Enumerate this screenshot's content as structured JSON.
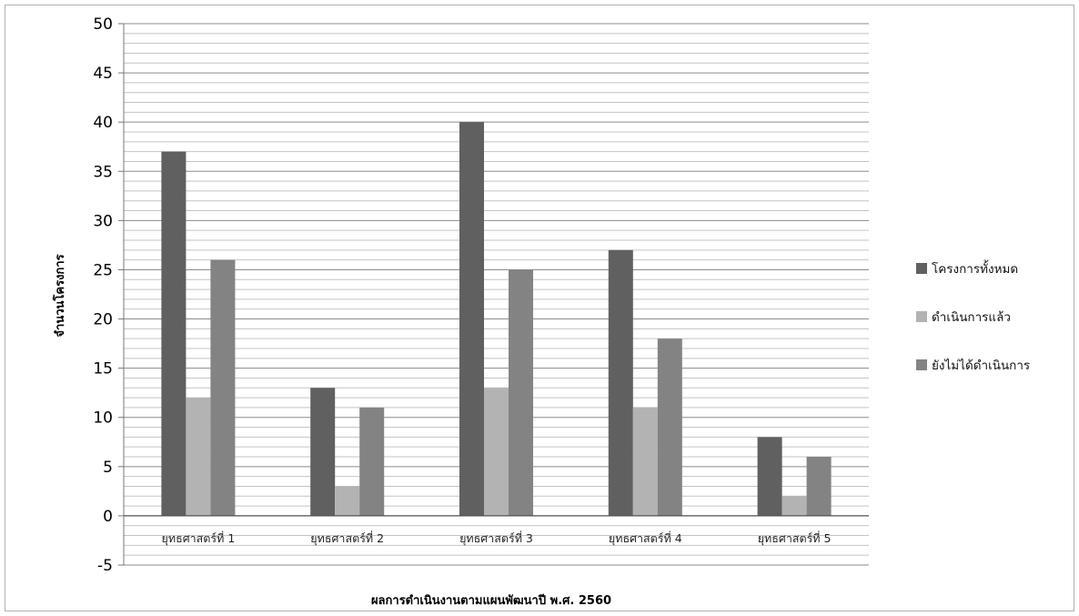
{
  "chart_data": {
    "type": "bar",
    "categories": [
      "ยุทธศาสตร์ที่ 1",
      "ยุทธศาสตร์ที่ 2",
      "ยุทธศาสตร์ที่ 3",
      "ยุทธศาสตร์ที่ 4",
      "ยุทธศาสตร์ที่ 5"
    ],
    "series": [
      {
        "name": "โครงการทั้งหมด",
        "values": [
          37,
          13,
          40,
          27,
          8
        ],
        "color": "#606060"
      },
      {
        "name": "ดำเนินการแล้ว",
        "values": [
          12,
          3,
          13,
          11,
          2
        ],
        "color": "#b3b3b3"
      },
      {
        "name": "ยังไม่ได้ดำเนินการ",
        "values": [
          26,
          11,
          25,
          18,
          6
        ],
        "color": "#838383"
      }
    ],
    "title": "",
    "xlabel": "ผลการดำเนินงานตามแผนพัฒนาปี พ.ศ. 2560",
    "ylabel": "จำนวนโครงการ",
    "ylim": [
      -5,
      50
    ],
    "yticks": [
      "-5",
      "0",
      "5",
      "10",
      "15",
      "20",
      "25",
      "30",
      "35",
      "40",
      "45",
      "50"
    ],
    "minor_step": 1,
    "grid": true,
    "legend_position": "right"
  }
}
